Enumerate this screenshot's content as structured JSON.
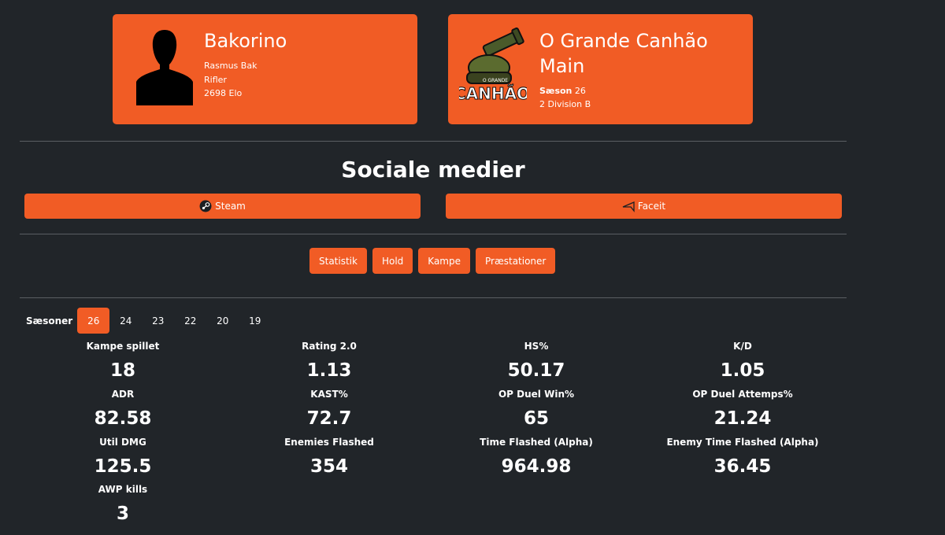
{
  "player_card": {
    "nickname": "Bakorino",
    "real_name": "Rasmus Bak",
    "role": "Rifler",
    "elo": "2698 Elo",
    "avatar_icon": "silhouette-avatar-icon"
  },
  "team_card": {
    "name": "O Grande Canhão Main",
    "season_label": "Sæson",
    "season_value": "26",
    "division": "2 Division B",
    "logo_icon": "cannon-logo-icon",
    "logo_text_top": "O GRANDE",
    "logo_text_main": "CANHÃO"
  },
  "social": {
    "title": "Sociale medier",
    "buttons": [
      {
        "label": "Steam",
        "icon": "steam-icon"
      },
      {
        "label": "Faceit",
        "icon": "faceit-icon"
      }
    ]
  },
  "tabs": [
    "Statistik",
    "Hold",
    "Kampe",
    "Præstationer"
  ],
  "seasons": {
    "label": "Sæsoner",
    "items": [
      "26",
      "24",
      "23",
      "22",
      "20",
      "19"
    ],
    "active": "26"
  },
  "stats": [
    {
      "label": "Kampe spillet",
      "value": "18"
    },
    {
      "label": "Rating 2.0",
      "value": "1.13"
    },
    {
      "label": "HS%",
      "value": "50.17"
    },
    {
      "label": "K/D",
      "value": "1.05"
    },
    {
      "label": "ADR",
      "value": "82.58"
    },
    {
      "label": "KAST%",
      "value": "72.7"
    },
    {
      "label": "OP Duel Win%",
      "value": "65"
    },
    {
      "label": "OP Duel Attemps%",
      "value": "21.24"
    },
    {
      "label": "Util DMG",
      "value": "125.5"
    },
    {
      "label": "Enemies Flashed",
      "value": "354"
    },
    {
      "label": "Time Flashed (Alpha)",
      "value": "964.98"
    },
    {
      "label": "Enemy Time Flashed (Alpha)",
      "value": "36.45"
    },
    {
      "label": "AWP kills",
      "value": "3"
    }
  ],
  "colors": {
    "accent": "#f15c25",
    "background": "#212529"
  }
}
